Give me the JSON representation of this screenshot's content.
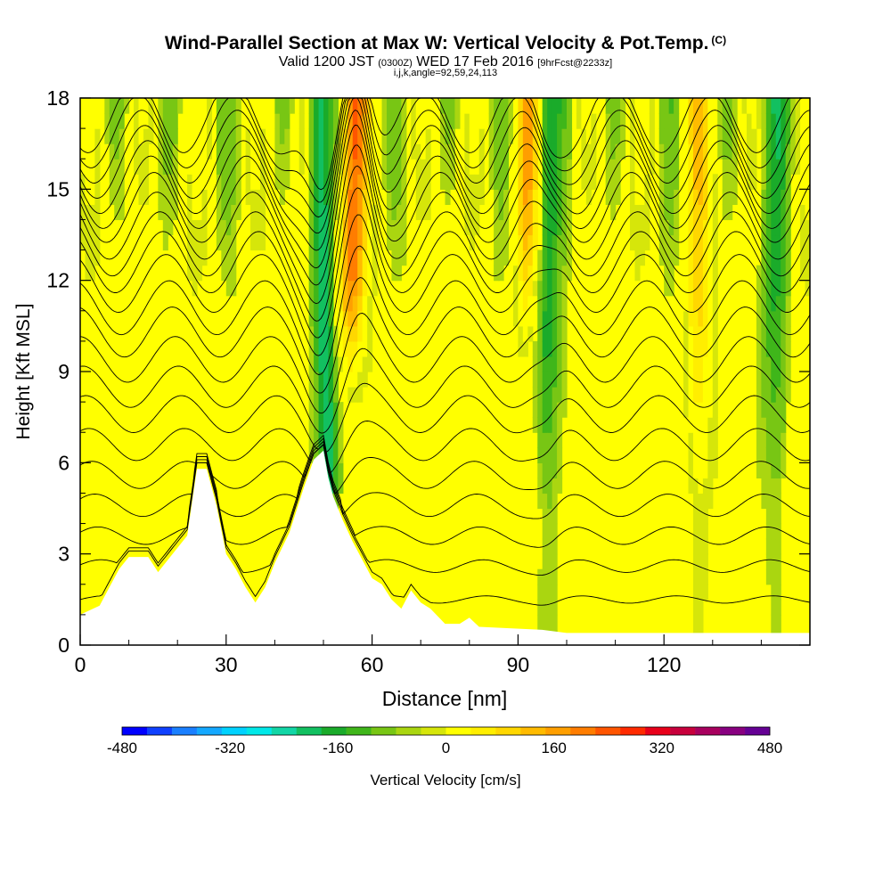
{
  "header": {
    "title": "Wind-Parallel Section at Max W: Vertical Velocity & Pot.Temp.",
    "title_suffix": "(C)",
    "valid_prefix": "Valid 1200 JST",
    "valid_utc": "(0300Z)",
    "valid_date": "WED 17 Feb 2016",
    "forecast": "[9hrFcst@2233z]",
    "grid_info": "i,j,k,angle=92,59,24,113"
  },
  "chart_data": {
    "type": "heatmap",
    "xlabel": "Distance [nm]",
    "ylabel": "Height [Kft MSL]",
    "xlim": [
      0,
      150
    ],
    "ylim": [
      0,
      18
    ],
    "xticks": [
      0,
      30,
      60,
      90,
      120
    ],
    "yticks": [
      0,
      3,
      6,
      9,
      12,
      15,
      18
    ],
    "colorbar": {
      "label": "Vertical Velocity [cm/s]",
      "tick_labels": [
        "-480",
        "-320",
        "-160",
        "0",
        "160",
        "320",
        "480"
      ],
      "tick_values": [
        -480,
        -320,
        -160,
        0,
        160,
        320,
        480
      ],
      "colors": [
        "#0000ff",
        "#0f40ff",
        "#1a7fff",
        "#14a8ff",
        "#00d2ff",
        "#00e8e8",
        "#12d6a6",
        "#12c060",
        "#1aab2a",
        "#3fb61a",
        "#78c614",
        "#aad610",
        "#d6e60a",
        "#ffff00",
        "#ffee00",
        "#ffd700",
        "#ffbb00",
        "#ff9f00",
        "#ff7d00",
        "#ff5500",
        "#ff2a00",
        "#e8001a",
        "#c8003c",
        "#a8005e",
        "#880080",
        "#650094"
      ]
    },
    "vertical_velocity_features": [
      {
        "x": 50,
        "w": -180,
        "note": "strong downdraft slanting from ~51 nm at 6 kft to ~49 nm at 18 kft"
      },
      {
        "x": 55,
        "w": 250,
        "note": "strong updraft aloft near 55-58 nm, 9-18 kft"
      },
      {
        "x": 96,
        "w": -150,
        "note": "downdraft band 95-98 nm"
      },
      {
        "x": 92,
        "w": 180,
        "note": "updraft band 90-93 nm aloft"
      },
      {
        "x": 127,
        "w": 120,
        "note": "updraft band 125-130 nm"
      },
      {
        "x": 143,
        "w": -120,
        "note": "downdraft band 142-146 nm aloft"
      }
    ],
    "terrain_kft": [
      [
        0,
        1
      ],
      [
        4,
        1.3
      ],
      [
        8,
        2.5
      ],
      [
        10,
        2.9
      ],
      [
        14,
        2.9
      ],
      [
        16,
        2.4
      ],
      [
        18,
        2.8
      ],
      [
        22,
        3.6
      ],
      [
        24,
        5.8
      ],
      [
        26,
        5.8
      ],
      [
        28,
        4.6
      ],
      [
        30,
        3.0
      ],
      [
        32,
        2.5
      ],
      [
        34,
        1.9
      ],
      [
        36,
        1.4
      ],
      [
        38,
        1.9
      ],
      [
        40,
        2.7
      ],
      [
        43,
        3.7
      ],
      [
        46,
        5.2
      ],
      [
        48,
        6.1
      ],
      [
        50,
        6.4
      ],
      [
        51,
        5.5
      ],
      [
        52,
        4.9
      ],
      [
        54,
        4.1
      ],
      [
        56,
        3.4
      ],
      [
        58,
        2.8
      ],
      [
        60,
        2.2
      ],
      [
        62,
        2.0
      ],
      [
        64,
        1.5
      ],
      [
        66,
        1.2
      ],
      [
        68,
        1.8
      ],
      [
        70,
        1.4
      ],
      [
        72,
        1.2
      ],
      [
        75,
        0.7
      ],
      [
        78,
        0.7
      ],
      [
        80,
        0.9
      ],
      [
        82,
        0.6
      ],
      [
        95,
        0.5
      ],
      [
        100,
        0.4
      ],
      [
        115,
        0.4
      ],
      [
        150,
        0.4
      ]
    ],
    "theta_contour_base_kft": [
      1.5,
      2.6,
      3.6,
      4.6,
      5.6,
      6.6,
      7.6,
      8.5,
      9.4,
      10.3,
      11.1,
      11.9,
      12.6,
      13.2,
      13.8,
      14.4,
      14.9,
      15.4,
      15.9,
      16.4,
      16.9,
      17.4
    ]
  }
}
